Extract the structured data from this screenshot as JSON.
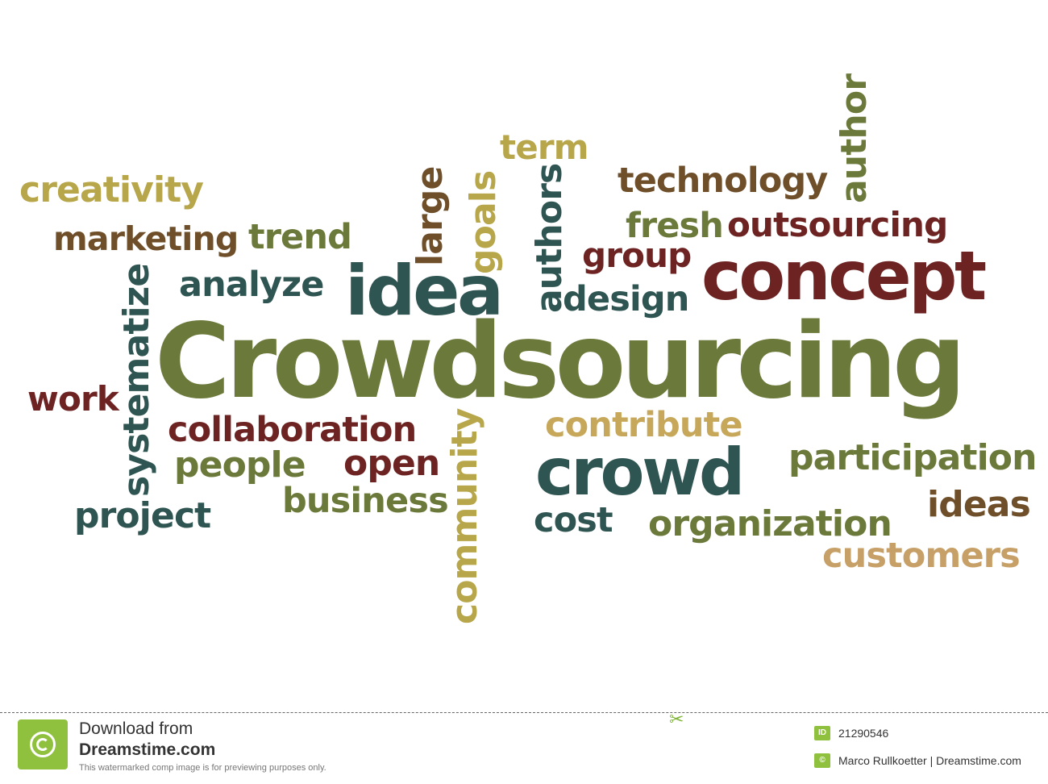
{
  "cloud": {
    "words": [
      {
        "text": "Crowdsourcing",
        "color": "#6b7a3a"
      },
      {
        "text": "concept",
        "color": "#6e2323"
      },
      {
        "text": "idea",
        "color": "#2f5552"
      },
      {
        "text": "crowd",
        "color": "#2f5552"
      },
      {
        "text": "outsourcing",
        "color": "#6e2323"
      },
      {
        "text": "technology",
        "color": "#6e4f2a"
      },
      {
        "text": "fresh",
        "color": "#6b7a3a"
      },
      {
        "text": "group",
        "color": "#6e2323"
      },
      {
        "text": "design",
        "color": "#2f5552"
      },
      {
        "text": "term",
        "color": "#b7a64a"
      },
      {
        "text": "author",
        "color": "#6b7a3a"
      },
      {
        "text": "authors",
        "color": "#2f5552"
      },
      {
        "text": "goals",
        "color": "#b7a64a"
      },
      {
        "text": "large",
        "color": "#6e4f2a"
      },
      {
        "text": "creativity",
        "color": "#b7a64a"
      },
      {
        "text": "marketing",
        "color": "#6e4f2a"
      },
      {
        "text": "trend",
        "color": "#6b7a3a"
      },
      {
        "text": "analyze",
        "color": "#2f5552"
      },
      {
        "text": "systematize",
        "color": "#2f5552"
      },
      {
        "text": "work",
        "color": "#6e2323"
      },
      {
        "text": "collaboration",
        "color": "#6e2323"
      },
      {
        "text": "people",
        "color": "#6b7a3a"
      },
      {
        "text": "open",
        "color": "#6e2323"
      },
      {
        "text": "business",
        "color": "#6b7a3a"
      },
      {
        "text": "project",
        "color": "#2f5552"
      },
      {
        "text": "community",
        "color": "#b7a64a"
      },
      {
        "text": "contribute",
        "color": "#c7a85a"
      },
      {
        "text": "cost",
        "color": "#2f5552"
      },
      {
        "text": "participation",
        "color": "#6b7a3a"
      },
      {
        "text": "ideas",
        "color": "#6e4f2a"
      },
      {
        "text": "organization",
        "color": "#6b7a3a"
      },
      {
        "text": "customers",
        "color": "#c7a068"
      }
    ]
  },
  "footer": {
    "download_line1": "Download from",
    "download_line2": "Dreamstime.com",
    "disclaimer": "This watermarked comp image is for previewing purposes only.",
    "id_badge": "ID",
    "image_id": "21290546",
    "copyright_badge": "©",
    "credit": "Marco Rullkoetter | Dreamstime.com",
    "accent_color": "#8fc13e"
  }
}
